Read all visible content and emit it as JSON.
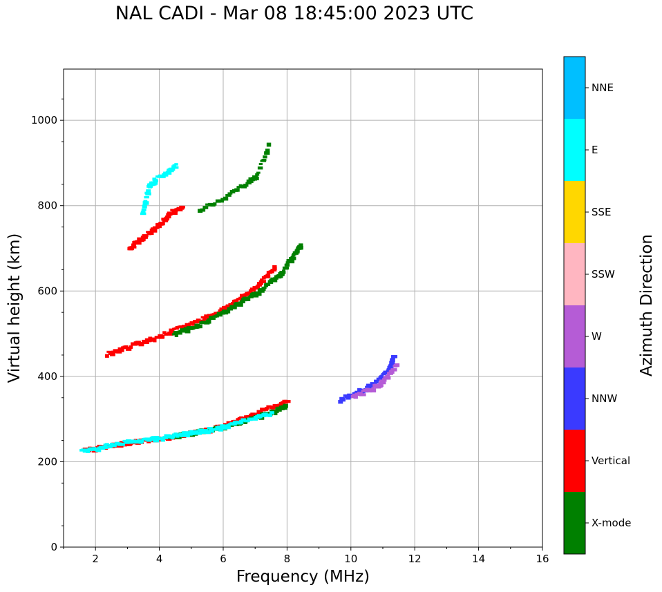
{
  "chart_data": {
    "type": "scatter",
    "title": "NAL CADI - Mar 08 18:45:00 2023 UTC",
    "xlabel": "Frequency (MHz)",
    "ylabel": "Virtual height (km)",
    "xlim": [
      1,
      16
    ],
    "ylim": [
      0,
      1120
    ],
    "xticks": [
      2,
      4,
      6,
      8,
      10,
      12,
      14,
      16
    ],
    "yticks": [
      0,
      200,
      400,
      600,
      800,
      1000
    ],
    "grid": true,
    "colorbar": {
      "label": "Azimuth Direction",
      "categories": [
        "X-mode",
        "Vertical",
        "NNW",
        "W",
        "SSW",
        "SSE",
        "E",
        "NNE"
      ],
      "colors": [
        "#008000",
        "#ff0000",
        "#3a3aff",
        "#b55cd6",
        "#ffb6c1",
        "#ffd700",
        "#00ffff",
        "#00bfff"
      ]
    },
    "traces": [
      {
        "name": "lower-trace-O",
        "category": "Vertical",
        "f": [
          1.6,
          2.0,
          2.5,
          3.0,
          3.5,
          4.0,
          4.5,
          5.0,
          5.5,
          6.0,
          6.5,
          7.0,
          7.5,
          8.0
        ],
        "h": [
          230,
          232,
          238,
          245,
          250,
          255,
          260,
          268,
          275,
          285,
          300,
          315,
          330,
          345
        ]
      },
      {
        "name": "lower-trace-X",
        "category": "X-mode",
        "f": [
          4.2,
          4.6,
          5.0,
          5.5,
          6.0,
          6.5,
          7.0,
          7.3,
          7.6,
          7.9
        ],
        "h": [
          255,
          262,
          268,
          274,
          282,
          292,
          305,
          312,
          320,
          330
        ]
      },
      {
        "name": "lower-trace-E",
        "category": "E",
        "f": [
          1.5,
          2.0,
          2.5,
          3.0,
          3.5,
          4.0,
          4.5,
          5.0,
          5.5,
          6.0,
          6.5,
          7.0,
          7.5
        ],
        "h": [
          225,
          232,
          240,
          246,
          252,
          256,
          262,
          268,
          275,
          282,
          295,
          305,
          315
        ]
      },
      {
        "name": "upper-trace-O",
        "category": "Vertical",
        "f": [
          2.3,
          2.8,
          3.3,
          3.8,
          4.3,
          4.8,
          5.3,
          5.8,
          6.2,
          6.6,
          7.0,
          7.3,
          7.6
        ],
        "h": [
          452,
          465,
          478,
          490,
          505,
          520,
          535,
          552,
          570,
          590,
          612,
          635,
          660
        ]
      },
      {
        "name": "upper-trace-X",
        "category": "X-mode",
        "f": [
          4.4,
          4.8,
          5.3,
          5.8,
          6.2,
          6.6,
          7.0,
          7.4,
          7.8,
          8.0,
          8.2,
          8.4
        ],
        "h": [
          500,
          510,
          525,
          545,
          560,
          580,
          595,
          620,
          645,
          670,
          690,
          710
        ]
      },
      {
        "name": "f-layer-NNW",
        "category": "NNW",
        "f": [
          9.6,
          10.0,
          10.4,
          10.8,
          11.1,
          11.3
        ],
        "h": [
          345,
          360,
          372,
          390,
          415,
          450
        ]
      },
      {
        "name": "f-layer-W",
        "category": "W",
        "f": [
          10.0,
          10.4,
          10.8,
          11.1,
          11.4
        ],
        "h": [
          352,
          365,
          380,
          400,
          430
        ]
      },
      {
        "name": "high-echoes-E",
        "category": "E",
        "f": [
          3.4,
          3.6,
          3.8,
          4.2,
          4.5
        ],
        "h": [
          780,
          845,
          860,
          880,
          895
        ]
      },
      {
        "name": "high-echoes-O",
        "category": "Vertical",
        "f": [
          3.0,
          3.3,
          3.7,
          4.0,
          4.3,
          4.7
        ],
        "h": [
          700,
          720,
          740,
          760,
          785,
          795
        ]
      },
      {
        "name": "high-echoes-X",
        "category": "X-mode",
        "f": [
          5.2,
          6.0,
          6.7,
          7.0,
          7.4
        ],
        "h": [
          790,
          820,
          855,
          870,
          950
        ]
      }
    ]
  }
}
